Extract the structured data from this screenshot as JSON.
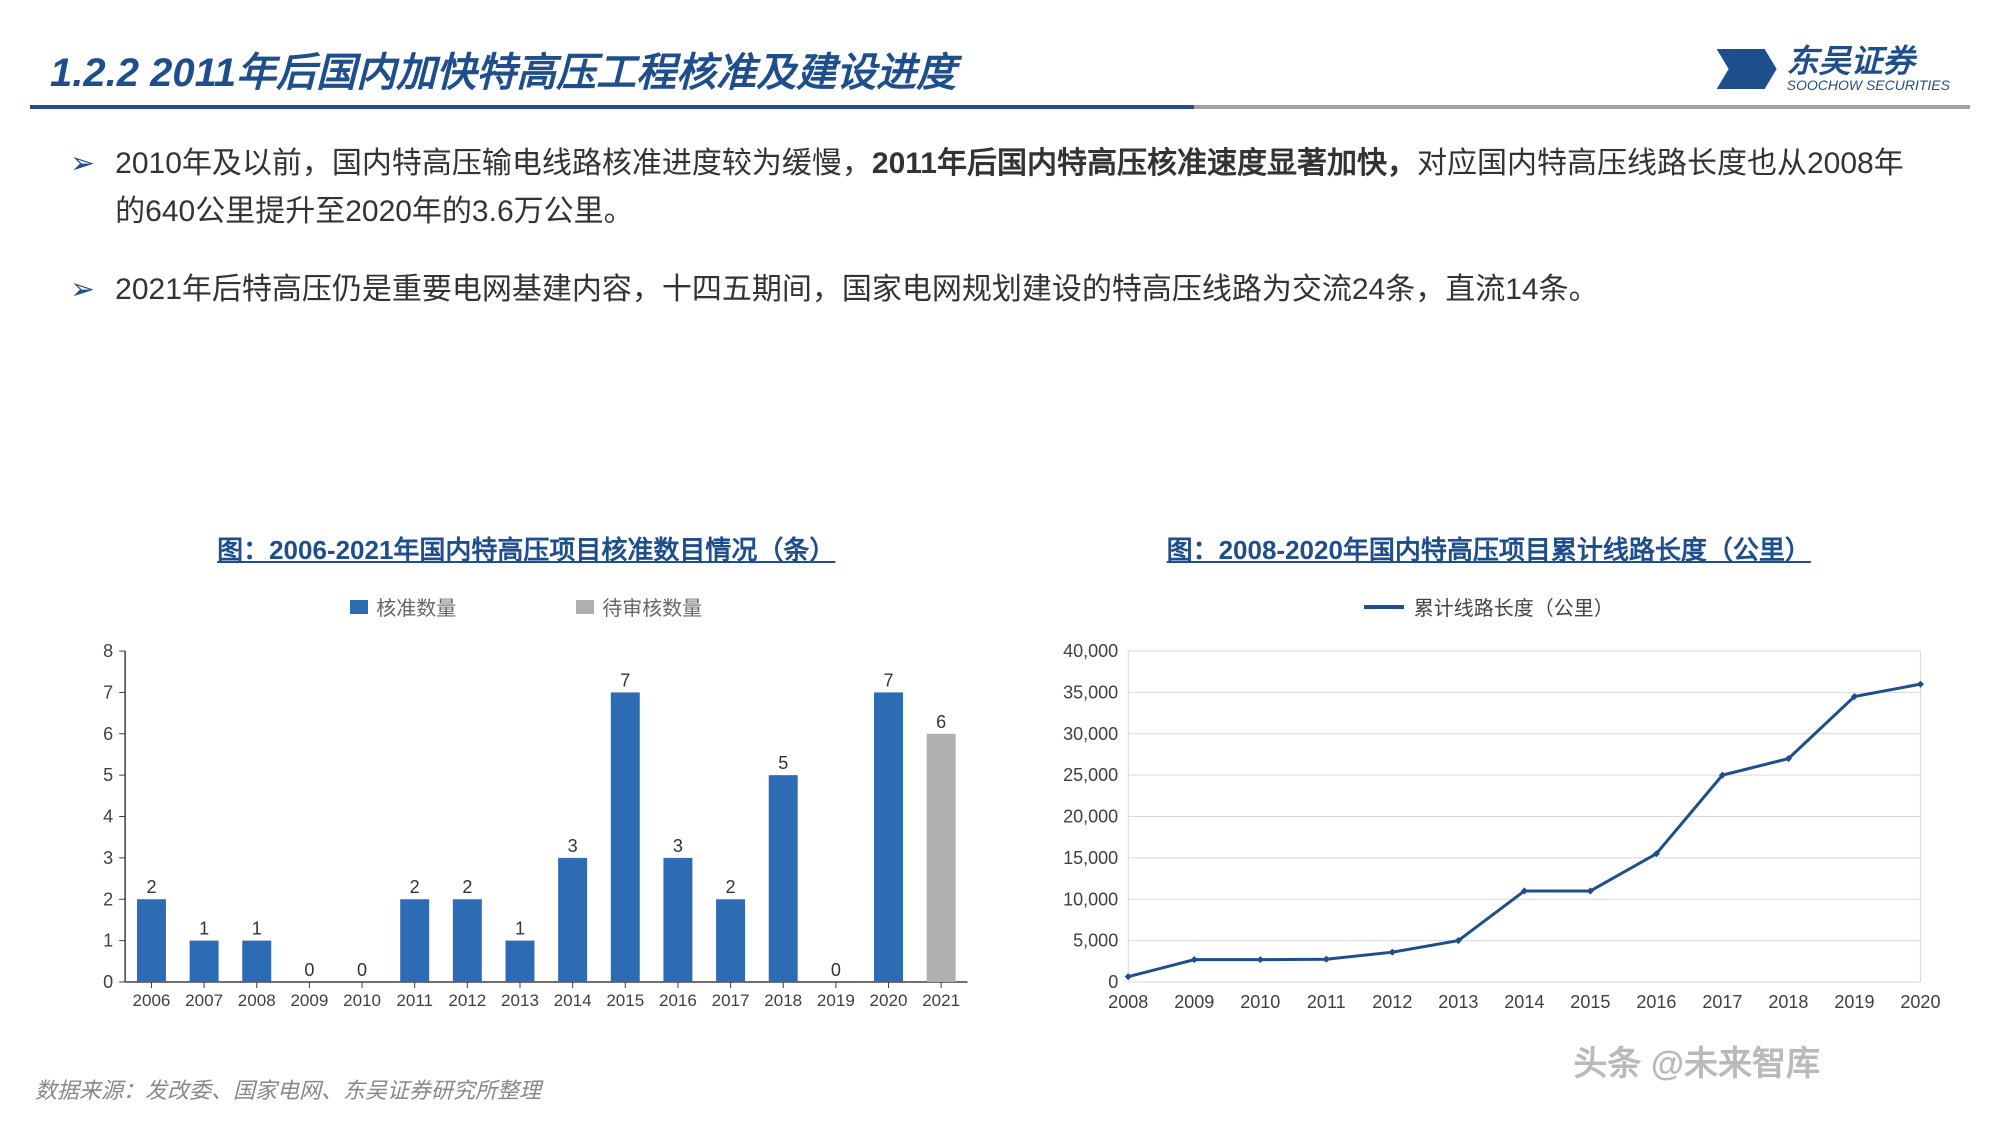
{
  "header": {
    "title": "1.2.2  2011年后国内加快特高压工程核准及建设进度",
    "logo_cn": "东吴证券",
    "logo_en": "SOOCHOW SECURITIES"
  },
  "bullets": [
    {
      "pre": "2010年及以前，国内特高压输电线路核准进度较为缓慢，",
      "bold": "2011年后国内特高压核准速度显著加快，",
      "post": "对应国内特高压线路长度也从2008年的640公里提升至2020年的3.6万公里。"
    },
    {
      "pre": "2021年后特高压仍是重要电网基建内容，十四五期间，国家电网规划建设的特高压线路为交流24条，直流14条。",
      "bold": "",
      "post": ""
    }
  ],
  "bar_chart": {
    "title": "图：2006-2021年国内特高压项目核准数目情况（条）",
    "type": "bar",
    "legend": [
      {
        "label": "核准数量",
        "color": "#2d6cb5"
      },
      {
        "label": "待审核数量",
        "color": "#b0b0b0"
      }
    ],
    "categories": [
      "2006",
      "2007",
      "2008",
      "2009",
      "2010",
      "2011",
      "2012",
      "2013",
      "2014",
      "2015",
      "2016",
      "2017",
      "2018",
      "2019",
      "2020",
      "2021"
    ],
    "values": [
      2,
      1,
      1,
      0,
      0,
      2,
      2,
      1,
      3,
      7,
      3,
      2,
      5,
      0,
      7,
      6
    ],
    "series_idx": [
      0,
      0,
      0,
      0,
      0,
      0,
      0,
      0,
      0,
      0,
      0,
      0,
      0,
      0,
      0,
      1
    ],
    "ylim": [
      0,
      8
    ],
    "ytick_step": 1,
    "label_fontsize": 18,
    "axis_color": "#404040",
    "grid_color": "#d0d0d0",
    "bar_width": 0.55,
    "background_color": "#ffffff"
  },
  "line_chart": {
    "title": "图：2008-2020年国内特高压项目累计线路长度（公里）",
    "type": "line",
    "legend_label": "累计线路长度（公里）",
    "line_color": "#1f4e8c",
    "line_width": 3,
    "marker_size": 5,
    "categories": [
      "2008",
      "2009",
      "2010",
      "2011",
      "2012",
      "2013",
      "2014",
      "2015",
      "2016",
      "2017",
      "2018",
      "2019",
      "2020"
    ],
    "values": [
      640,
      2700,
      2700,
      2750,
      3600,
      5000,
      11000,
      11000,
      15500,
      25000,
      27000,
      34500,
      36000
    ],
    "ylim": [
      0,
      40000
    ],
    "ytick_step": 5000,
    "label_fontsize": 18,
    "axis_color": "#404040",
    "grid_color": "#d9d9d9",
    "background_color": "#ffffff"
  },
  "source": "数据来源：发改委、国家电网、东吴证券研究所整理",
  "watermark": "头条 @未来智库",
  "colors": {
    "primary": "#1f4e8c"
  }
}
